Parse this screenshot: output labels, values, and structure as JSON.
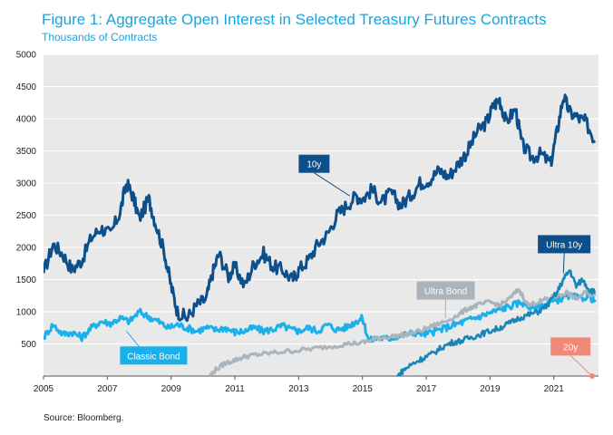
{
  "header": {
    "title": "Figure 1: Aggregate Open Interest in Selected Treasury Futures Contracts",
    "subtitle": "Thousands of Contracts"
  },
  "footer": {
    "source": "Source: Bloomberg."
  },
  "colors": {
    "10y": "#0d4f8b",
    "classic_bond": "#1ab0ea",
    "ultra_bond": "#aab4bd",
    "ultra_10y": "#1685b8",
    "20y": "#f08a76",
    "plot_bg": "#e9e9e9",
    "grid": "#ffffff"
  },
  "chart_data": {
    "type": "line",
    "title": "Figure 1: Aggregate Open Interest in Selected Treasury Futures Contracts",
    "subtitle": "Thousands of Contracts",
    "xlim": [
      2005,
      2022.4
    ],
    "ylim": [
      0,
      5000
    ],
    "x_ticks": [
      "2005",
      "2007",
      "2009",
      "2011",
      "2013",
      "2015",
      "2017",
      "2019",
      "2021"
    ],
    "x_tick_values": [
      2005,
      2007,
      2009,
      2011,
      2013,
      2015,
      2017,
      2019,
      2021
    ],
    "y_ticks": [
      "500",
      "1000",
      "1500",
      "2000",
      "2500",
      "3000",
      "3500",
      "4000",
      "4500",
      "5000"
    ],
    "y_tick_values": [
      500,
      1000,
      1500,
      2000,
      2500,
      3000,
      3500,
      4000,
      4500,
      5000
    ],
    "grid": true,
    "series": [
      {
        "name": "10y",
        "color": "#0d4f8b",
        "points": [
          [
            2005.0,
            1600
          ],
          [
            2005.3,
            2050
          ],
          [
            2005.6,
            1900
          ],
          [
            2005.9,
            1650
          ],
          [
            2006.2,
            1800
          ],
          [
            2006.5,
            2150
          ],
          [
            2006.8,
            2300
          ],
          [
            2007.1,
            2200
          ],
          [
            2007.4,
            2550
          ],
          [
            2007.6,
            3000
          ],
          [
            2007.8,
            2800
          ],
          [
            2008.0,
            2450
          ],
          [
            2008.3,
            2750
          ],
          [
            2008.5,
            2400
          ],
          [
            2008.8,
            1900
          ],
          [
            2009.0,
            1400
          ],
          [
            2009.2,
            1000
          ],
          [
            2009.5,
            900
          ],
          [
            2009.8,
            1100
          ],
          [
            2010.1,
            1200
          ],
          [
            2010.3,
            1600
          ],
          [
            2010.5,
            1900
          ],
          [
            2010.8,
            1550
          ],
          [
            2011.0,
            1700
          ],
          [
            2011.3,
            1400
          ],
          [
            2011.6,
            1750
          ],
          [
            2011.9,
            1900
          ],
          [
            2012.2,
            1700
          ],
          [
            2012.5,
            1650
          ],
          [
            2012.8,
            1500
          ],
          [
            2013.0,
            1650
          ],
          [
            2013.3,
            1800
          ],
          [
            2013.6,
            2050
          ],
          [
            2013.9,
            2200
          ],
          [
            2014.2,
            2500
          ],
          [
            2014.5,
            2650
          ],
          [
            2014.8,
            2800
          ],
          [
            2015.0,
            2750
          ],
          [
            2015.3,
            2900
          ],
          [
            2015.6,
            2700
          ],
          [
            2015.9,
            2850
          ],
          [
            2016.2,
            2650
          ],
          [
            2016.5,
            2800
          ],
          [
            2016.8,
            3000
          ],
          [
            2017.1,
            3050
          ],
          [
            2017.4,
            3200
          ],
          [
            2017.7,
            3100
          ],
          [
            2018.0,
            3300
          ],
          [
            2018.3,
            3500
          ],
          [
            2018.6,
            3800
          ],
          [
            2018.9,
            3950
          ],
          [
            2019.1,
            4200
          ],
          [
            2019.3,
            4300
          ],
          [
            2019.5,
            3950
          ],
          [
            2019.8,
            4150
          ],
          [
            2020.0,
            3600
          ],
          [
            2020.3,
            3400
          ],
          [
            2020.6,
            3450
          ],
          [
            2020.9,
            3300
          ],
          [
            2021.1,
            3800
          ],
          [
            2021.3,
            4350
          ],
          [
            2021.5,
            4100
          ],
          [
            2021.8,
            4000
          ],
          [
            2022.0,
            3950
          ],
          [
            2022.3,
            3650
          ]
        ]
      },
      {
        "name": "Classic Bond",
        "color": "#1ab0ea",
        "points": [
          [
            2005.0,
            600
          ],
          [
            2005.3,
            800
          ],
          [
            2005.6,
            650
          ],
          [
            2005.9,
            680
          ],
          [
            2006.2,
            600
          ],
          [
            2006.5,
            750
          ],
          [
            2006.8,
            850
          ],
          [
            2007.1,
            820
          ],
          [
            2007.4,
            900
          ],
          [
            2007.7,
            850
          ],
          [
            2008.0,
            1000
          ],
          [
            2008.3,
            920
          ],
          [
            2008.6,
            850
          ],
          [
            2008.9,
            750
          ],
          [
            2009.2,
            800
          ],
          [
            2009.5,
            750
          ],
          [
            2009.8,
            700
          ],
          [
            2010.1,
            750
          ],
          [
            2010.4,
            720
          ],
          [
            2010.7,
            750
          ],
          [
            2011.0,
            680
          ],
          [
            2011.3,
            700
          ],
          [
            2011.6,
            750
          ],
          [
            2011.9,
            700
          ],
          [
            2012.2,
            730
          ],
          [
            2012.5,
            780
          ],
          [
            2012.8,
            720
          ],
          [
            2013.0,
            700
          ],
          [
            2013.3,
            750
          ],
          [
            2013.6,
            700
          ],
          [
            2013.9,
            800
          ],
          [
            2014.2,
            720
          ],
          [
            2014.5,
            760
          ],
          [
            2014.8,
            850
          ],
          [
            2015.0,
            900
          ],
          [
            2015.2,
            550
          ],
          [
            2015.5,
            600
          ],
          [
            2015.8,
            580
          ],
          [
            2016.1,
            620
          ],
          [
            2016.4,
            650
          ],
          [
            2016.7,
            680
          ],
          [
            2017.0,
            650
          ],
          [
            2017.3,
            700
          ],
          [
            2017.6,
            750
          ],
          [
            2017.9,
            800
          ],
          [
            2018.2,
            850
          ],
          [
            2018.5,
            900
          ],
          [
            2018.8,
            950
          ],
          [
            2019.1,
            1000
          ],
          [
            2019.4,
            1050
          ],
          [
            2019.7,
            1100
          ],
          [
            2020.0,
            1150
          ],
          [
            2020.3,
            1050
          ],
          [
            2020.6,
            1100
          ],
          [
            2020.9,
            1150
          ],
          [
            2021.2,
            1200
          ],
          [
            2021.5,
            1250
          ],
          [
            2021.8,
            1200
          ],
          [
            2022.1,
            1250
          ],
          [
            2022.3,
            1150
          ]
        ]
      },
      {
        "name": "Ultra Bond",
        "color": "#aab4bd",
        "points": [
          [
            2010.2,
            0
          ],
          [
            2010.4,
            100
          ],
          [
            2010.7,
            200
          ],
          [
            2011.0,
            250
          ],
          [
            2011.3,
            300
          ],
          [
            2011.6,
            330
          ],
          [
            2012.0,
            350
          ],
          [
            2012.5,
            380
          ],
          [
            2013.0,
            400
          ],
          [
            2013.5,
            430
          ],
          [
            2014.0,
            460
          ],
          [
            2014.5,
            500
          ],
          [
            2015.0,
            520
          ],
          [
            2015.3,
            560
          ],
          [
            2015.6,
            600
          ],
          [
            2016.0,
            620
          ],
          [
            2016.4,
            650
          ],
          [
            2016.8,
            700
          ],
          [
            2017.2,
            780
          ],
          [
            2017.6,
            850
          ],
          [
            2018.0,
            950
          ],
          [
            2018.3,
            1050
          ],
          [
            2018.6,
            1100
          ],
          [
            2019.0,
            1150
          ],
          [
            2019.3,
            1100
          ],
          [
            2019.6,
            1200
          ],
          [
            2019.9,
            1350
          ],
          [
            2020.2,
            1100
          ],
          [
            2020.5,
            1150
          ],
          [
            2020.8,
            1200
          ],
          [
            2021.1,
            1250
          ],
          [
            2021.4,
            1300
          ],
          [
            2021.7,
            1200
          ],
          [
            2022.0,
            1300
          ],
          [
            2022.3,
            1250
          ]
        ]
      },
      {
        "name": "Ultra 10y",
        "color": "#1685b8",
        "points": [
          [
            2016.1,
            0
          ],
          [
            2016.3,
            100
          ],
          [
            2016.6,
            200
          ],
          [
            2016.9,
            280
          ],
          [
            2017.2,
            350
          ],
          [
            2017.5,
            450
          ],
          [
            2017.8,
            520
          ],
          [
            2018.1,
            550
          ],
          [
            2018.4,
            600
          ],
          [
            2018.7,
            650
          ],
          [
            2019.0,
            700
          ],
          [
            2019.3,
            750
          ],
          [
            2019.6,
            820
          ],
          [
            2019.9,
            900
          ],
          [
            2020.2,
            950
          ],
          [
            2020.5,
            1000
          ],
          [
            2020.8,
            1100
          ],
          [
            2021.1,
            1300
          ],
          [
            2021.3,
            1500
          ],
          [
            2021.5,
            1650
          ],
          [
            2021.7,
            1400
          ],
          [
            2021.9,
            1500
          ],
          [
            2022.1,
            1350
          ],
          [
            2022.3,
            1300
          ]
        ]
      },
      {
        "name": "20y",
        "color": "#f08a76",
        "points": [
          [
            2022.2,
            0
          ],
          [
            2022.3,
            10
          ]
        ]
      }
    ],
    "annotations": [
      "10y",
      "Classic Bond",
      "Ultra Bond",
      "Ultra 10y",
      "20y"
    ]
  }
}
